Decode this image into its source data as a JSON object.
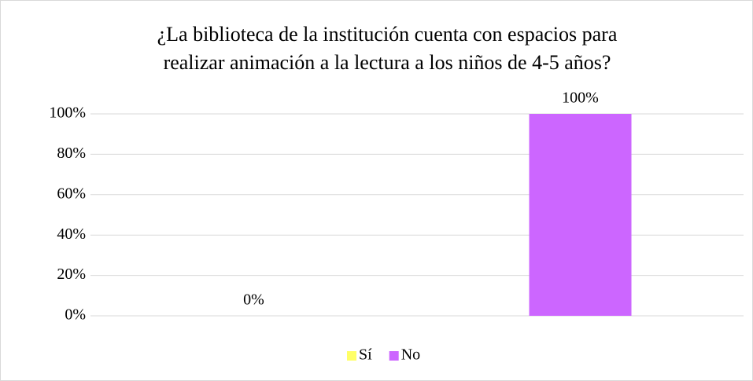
{
  "chart_data": {
    "type": "bar",
    "title": [
      "¿La biblioteca de la institución cuenta con espacios para",
      "realizar animación a la lectura a los niños de 4-5 años?"
    ],
    "categories": [
      null
    ],
    "series": [
      {
        "name": "Sí",
        "color": "#ffff66",
        "values": [
          0
        ],
        "value_labels": [
          "0%"
        ]
      },
      {
        "name": "No",
        "color": "#cc66ff",
        "values": [
          100
        ],
        "value_labels": [
          "100%"
        ]
      }
    ],
    "ylim": [
      0,
      100
    ],
    "yticks": [
      {
        "value": 0,
        "label": "0%"
      },
      {
        "value": 20,
        "label": "20%"
      },
      {
        "value": 40,
        "label": "40%"
      },
      {
        "value": 60,
        "label": "60%"
      },
      {
        "value": 80,
        "label": "80%"
      },
      {
        "value": 100,
        "label": "100%"
      }
    ],
    "grid": true,
    "legend": "bottom"
  }
}
